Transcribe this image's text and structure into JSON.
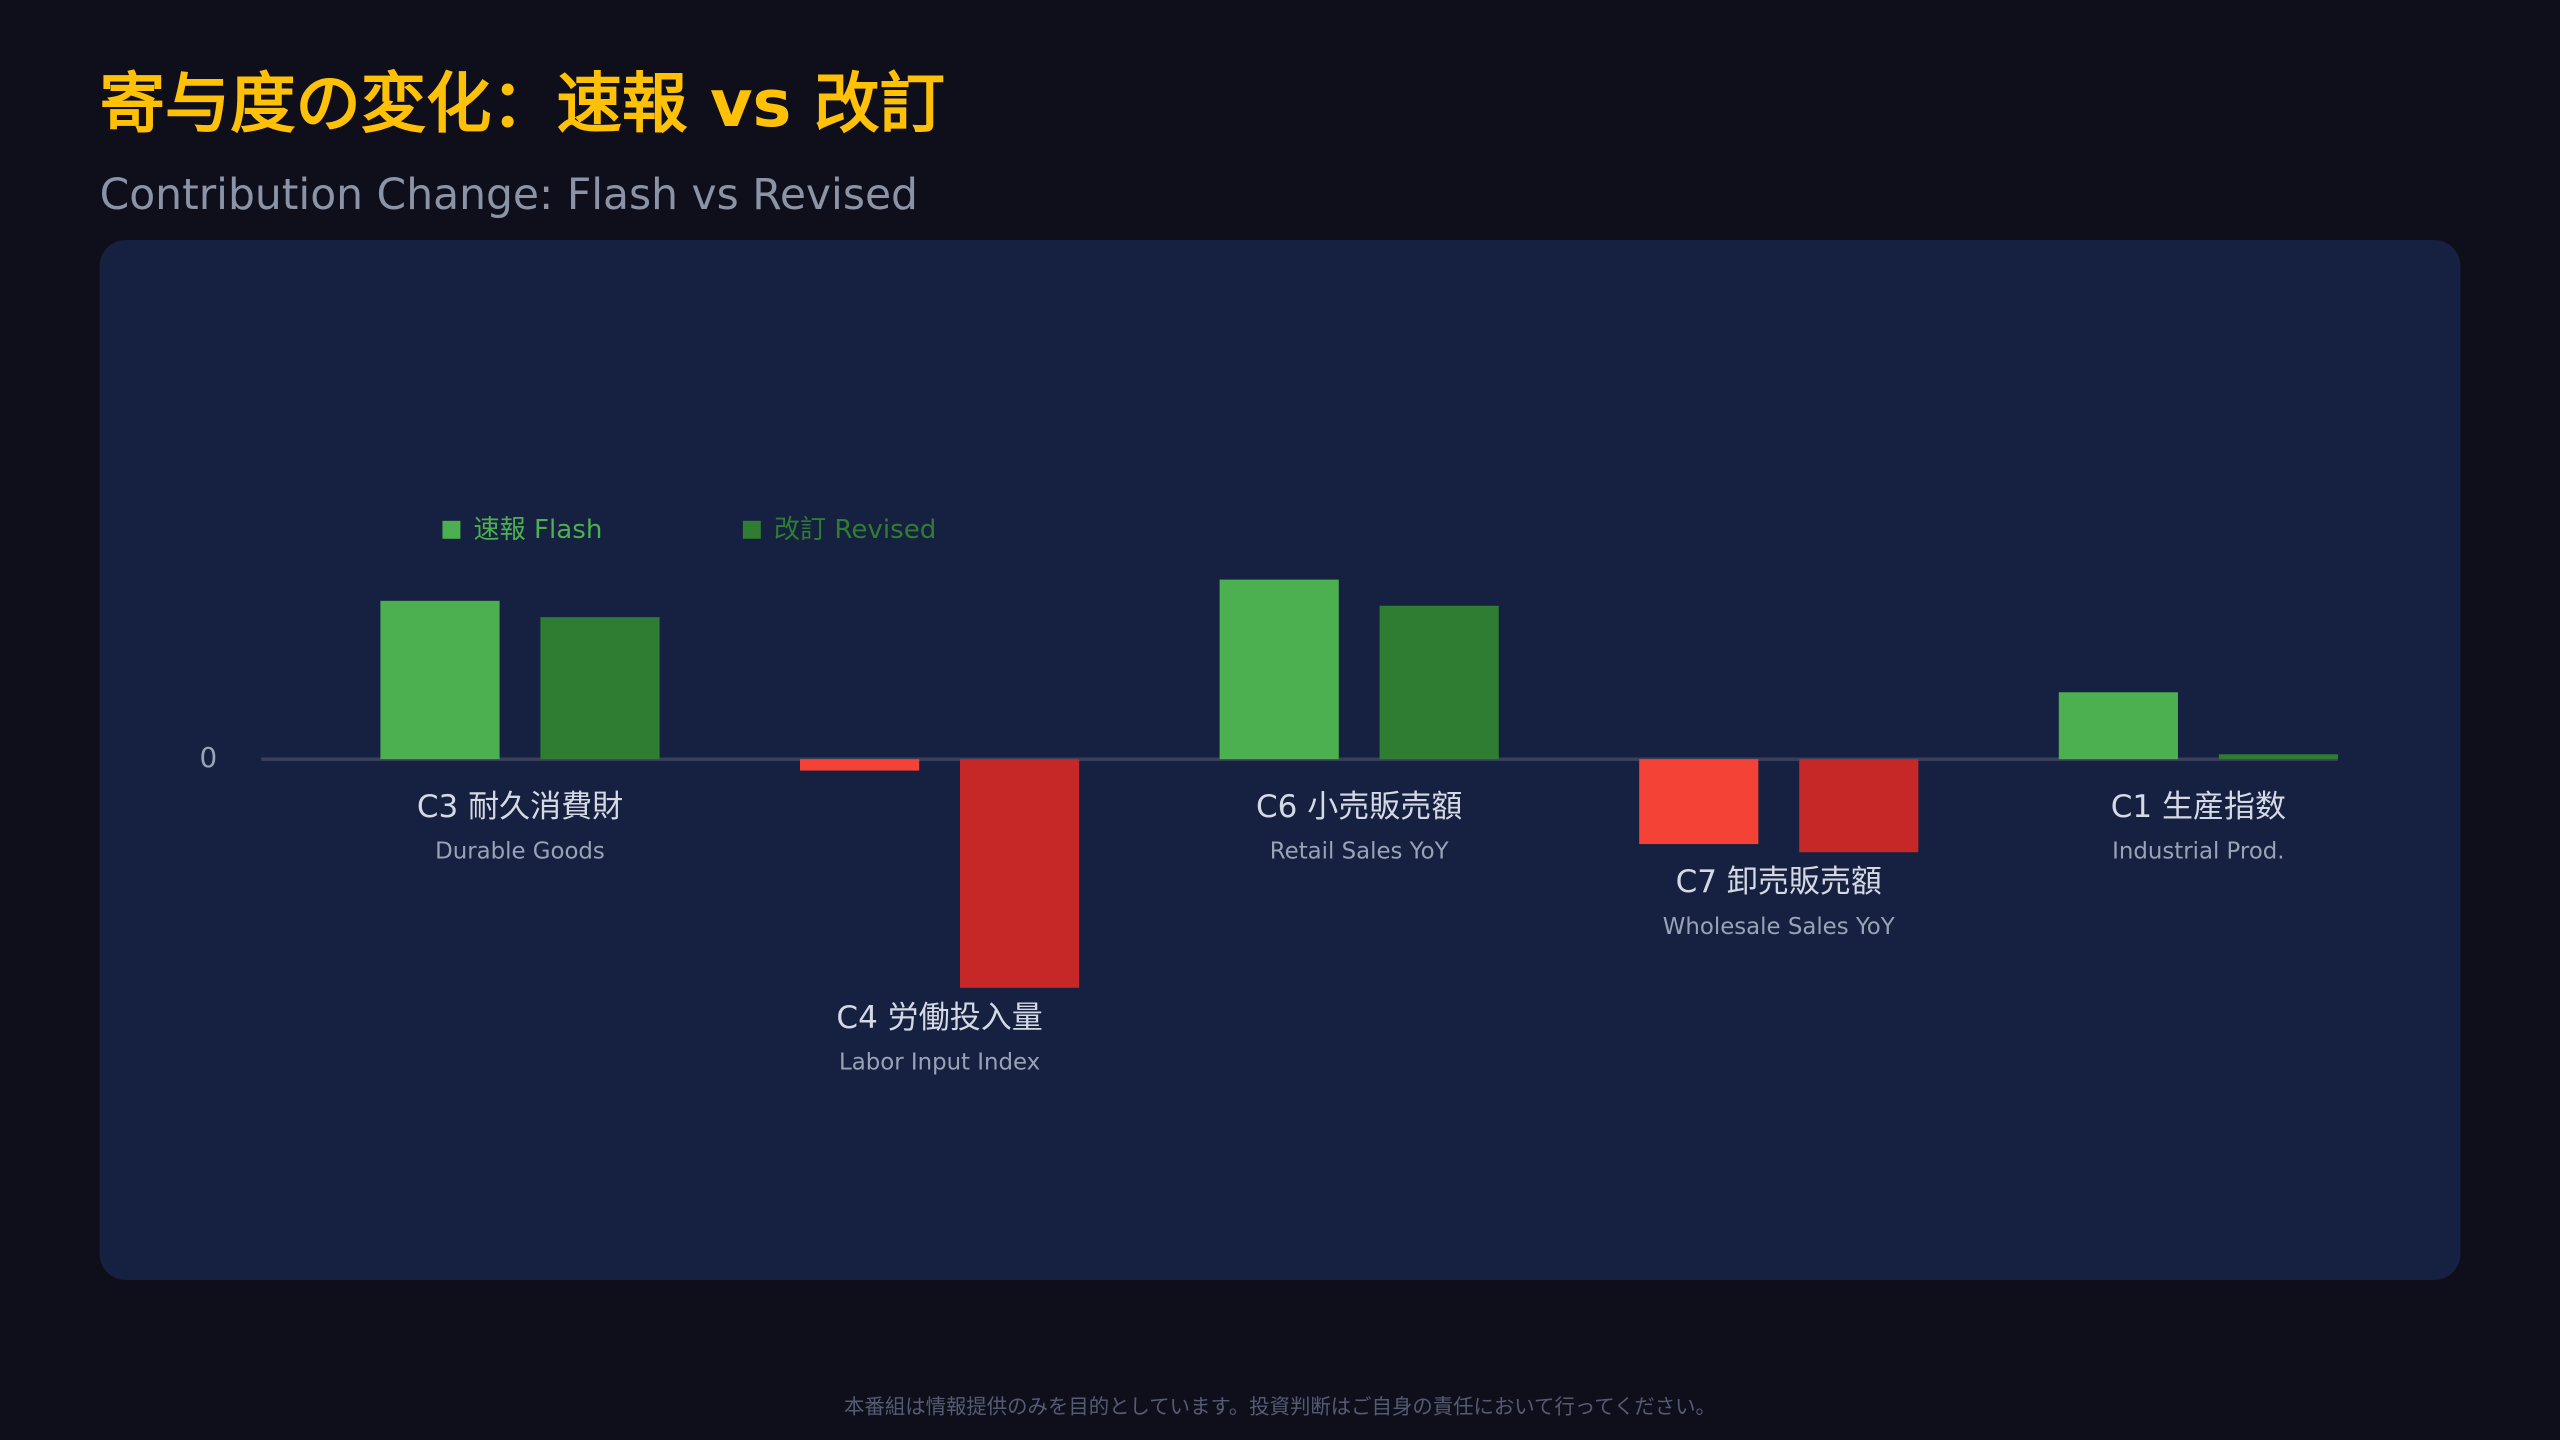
{
  "chart_data": {
    "type": "bar",
    "title": "寄与度の変化：速報 vs 改訂",
    "subtitle": "Contribution Change: Flash vs Revised",
    "categories": [
      "C3 耐久消費財",
      "C4 労働投入量",
      "C6 小売販売額",
      "C7 卸売販売額",
      "C1 生産指数"
    ],
    "category_subtitles": [
      "Durable Goods",
      "Labor Input Index",
      "Retail Sales YoY",
      "Wholesale Sales YoY",
      "Industrial Prod."
    ],
    "series": [
      {
        "name": "速報 Flash",
        "color": "#4caf50",
        "negative_color": "#f44336",
        "values": [
          9.7,
          -0.7,
          11.0,
          -5.2,
          4.1
        ]
      },
      {
        "name": "改訂 Revised",
        "color": "#2e7d32",
        "negative_color": "#c62828",
        "values": [
          8.7,
          -14.0,
          9.4,
          -5.7,
          0.3
        ]
      }
    ],
    "ylim": [
      -20,
      20
    ],
    "yticks": [
      0
    ]
  },
  "footer": "本番組は情報提供のみを目的としています。投資判断はご自身の責任において行ってください。"
}
